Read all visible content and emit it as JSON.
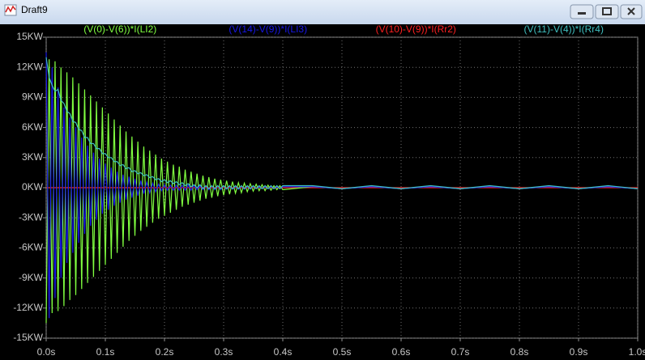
{
  "window": {
    "title": "Draft9"
  },
  "chart_data": {
    "type": "line",
    "x": [
      0,
      0.005,
      0.01,
      0.015,
      0.02,
      0.025,
      0.03,
      0.035,
      0.04,
      0.045,
      0.05,
      0.055,
      0.06,
      0.065,
      0.07,
      0.075,
      0.08,
      0.085,
      0.09,
      0.095,
      0.1,
      0.105,
      0.11,
      0.115,
      0.12,
      0.125,
      0.13,
      0.135,
      0.14,
      0.145,
      0.15,
      0.155,
      0.16,
      0.165,
      0.17,
      0.175,
      0.18,
      0.185,
      0.19,
      0.195,
      0.2,
      0.205,
      0.21,
      0.215,
      0.22,
      0.225,
      0.23,
      0.235,
      0.24,
      0.245,
      0.25,
      0.255,
      0.26,
      0.265,
      0.27,
      0.275,
      0.28,
      0.285,
      0.29,
      0.295,
      0.3,
      0.305,
      0.31,
      0.315,
      0.32,
      0.325,
      0.33,
      0.335,
      0.34,
      0.345,
      0.35,
      0.355,
      0.36,
      0.365,
      0.37,
      0.375,
      0.38,
      0.385,
      0.39,
      0.395,
      0.4,
      0.45,
      0.5,
      0.55,
      0.6,
      0.65,
      0.7,
      0.75,
      0.8,
      0.85,
      0.9,
      0.95,
      1.0
    ],
    "series": [
      {
        "name": "(V(0)-V(6))*I(LI2)",
        "color": "#80ff40",
        "values": [
          -13.5,
          12.8,
          -12.5,
          12.6,
          -12.3,
          12,
          -11.8,
          11.5,
          -11.2,
          11,
          -10.7,
          10.4,
          -10.1,
          9.8,
          -9.5,
          9.2,
          -8.9,
          8.6,
          -8.3,
          8,
          -7.7,
          7.4,
          -7.1,
          6.8,
          -6.5,
          6.2,
          -5.9,
          5.6,
          -5.3,
          5.1,
          -4.8,
          4.6,
          -4.3,
          4.1,
          -3.9,
          3.7,
          -3.5,
          3.3,
          -3.1,
          2.9,
          -2.8,
          2.6,
          -2.5,
          2.3,
          -2.2,
          2.1,
          -1.9,
          1.8,
          -1.7,
          1.6,
          -1.5,
          1.4,
          -1.3,
          1.2,
          -1.1,
          1.05,
          -1,
          0.9,
          -0.85,
          0.8,
          -0.75,
          0.7,
          -0.65,
          0.6,
          -0.55,
          0.5,
          -0.5,
          0.45,
          -0.4,
          0.4,
          -0.35,
          0.35,
          -0.3,
          0.3,
          -0.3,
          0.25,
          -0.25,
          0.2,
          -0.2,
          0.2,
          -0.2,
          0.1,
          -0.1,
          0.1,
          -0.1,
          0.1,
          -0.1,
          0.1,
          -0.1,
          0.1,
          -0.1,
          0.1,
          -0.1
        ]
      },
      {
        "name": "(V(14)-V(9))*I(LI3)",
        "color": "#1818e8",
        "values": [
          13.5,
          -13,
          12,
          -11,
          10,
          -9,
          8,
          -7.5,
          7,
          -6.5,
          6,
          -5.5,
          5,
          -4.6,
          4.2,
          -3.8,
          3.5,
          -3.2,
          2.9,
          -2.6,
          2.4,
          -2.2,
          2,
          -1.8,
          1.6,
          -1.5,
          1.3,
          -1.2,
          1.1,
          -1,
          0.9,
          -0.8,
          0.7,
          -0.6,
          0.55,
          -0.5,
          0.45,
          -0.4,
          0.35,
          -0.3,
          0.3,
          -0.25,
          0.25,
          -0.25,
          0.25,
          -0.25,
          0.25,
          -0.25,
          0.25,
          -0.25,
          0.25,
          -0.2,
          0.2,
          -0.2,
          0.2,
          -0.2,
          0.2,
          -0.2,
          0.2,
          -0.2,
          0.2,
          -0.15,
          0.15,
          -0.15,
          0.15,
          -0.15,
          0.15,
          -0.15,
          0.15,
          -0.15,
          0.15,
          -0.1,
          0.1,
          -0.1,
          0.1,
          -0.1,
          0.1,
          -0.1,
          0.1,
          -0.1,
          0.1,
          0.1,
          -0.1,
          0.1,
          -0.1,
          0.1,
          -0.1,
          0.1,
          -0.1,
          0.1,
          -0.1,
          0.1,
          -0.1
        ]
      },
      {
        "name": "(V(10)-V(9))*I(Rr2)",
        "color": "#ff2020",
        "values": [
          0,
          0,
          0,
          0,
          0,
          0,
          0,
          0,
          0,
          0,
          0,
          0,
          0,
          0,
          0,
          0,
          0,
          0,
          0,
          0,
          0,
          0,
          0,
          0,
          0,
          0,
          0,
          0,
          0,
          0,
          0,
          0,
          0,
          0,
          0,
          0,
          0,
          0,
          0,
          0,
          0,
          0,
          0,
          0,
          0,
          0,
          0,
          0,
          0,
          0,
          0,
          0,
          0,
          0,
          0,
          0,
          0,
          0,
          0,
          0,
          0,
          0,
          0,
          0,
          0,
          0,
          0,
          0,
          0,
          0,
          0,
          0,
          0,
          0,
          0,
          0,
          0,
          0,
          0,
          0,
          0,
          0,
          0,
          0,
          0,
          0,
          0,
          0,
          0,
          0,
          0,
          0,
          0
        ]
      },
      {
        "name": "(V(11)-V(4))*I(Rr4)",
        "color": "#40c0c0",
        "values": [
          13,
          11,
          10.2,
          9.6,
          9.8,
          8.7,
          8.4,
          7.6,
          7.4,
          6.6,
          6.5,
          5.8,
          5.7,
          5.0,
          5.0,
          4.4,
          4.4,
          3.9,
          3.9,
          3.4,
          3.4,
          3.0,
          3.0,
          2.6,
          2.6,
          2.2,
          2.3,
          1.9,
          2.0,
          1.6,
          1.7,
          1.4,
          1.5,
          1.2,
          1.3,
          1.0,
          1.1,
          0.8,
          0.9,
          0.6,
          0.8,
          0.5,
          0.7,
          0.4,
          0.6,
          0.3,
          0.5,
          0.2,
          0.4,
          0.1,
          0.3,
          0.0,
          0.3,
          -0.1,
          0.2,
          -0.1,
          0.2,
          -0.1,
          0.2,
          -0.1,
          0.2,
          -0.1,
          0.2,
          -0.1,
          0.2,
          -0.1,
          0.2,
          -0.1,
          0.2,
          -0.1,
          0.2,
          -0.1,
          0.2,
          -0.1,
          0.2,
          -0.1,
          0.2,
          -0.1,
          0.2,
          -0.1,
          0.2,
          0.2,
          -0.1,
          0.2,
          -0.1,
          0.2,
          -0.1,
          0.2,
          -0.1,
          0.2,
          -0.1,
          0.2,
          -0.1
        ]
      }
    ],
    "xlim": [
      0,
      1
    ],
    "ylim": [
      -15,
      15
    ],
    "xticks": [
      {
        "value": 0,
        "label": "0.0s"
      },
      {
        "value": 0.1,
        "label": "0.1s"
      },
      {
        "value": 0.2,
        "label": "0.2s"
      },
      {
        "value": 0.3,
        "label": "0.3s"
      },
      {
        "value": 0.4,
        "label": "0.4s"
      },
      {
        "value": 0.5,
        "label": "0.5s"
      },
      {
        "value": 0.6,
        "label": "0.6s"
      },
      {
        "value": 0.7,
        "label": "0.7s"
      },
      {
        "value": 0.8,
        "label": "0.8s"
      },
      {
        "value": 0.9,
        "label": "0.9s"
      },
      {
        "value": 1,
        "label": "1.0s"
      }
    ],
    "yticks": [
      {
        "value": -15,
        "label": "-15KW"
      },
      {
        "value": -12,
        "label": "-12KW"
      },
      {
        "value": -9,
        "label": "-9KW"
      },
      {
        "value": -6,
        "label": "-6KW"
      },
      {
        "value": -3,
        "label": "-3KW"
      },
      {
        "value": 0,
        "label": "0KW"
      },
      {
        "value": 3,
        "label": "3KW"
      },
      {
        "value": 6,
        "label": "6KW"
      },
      {
        "value": 9,
        "label": "9KW"
      },
      {
        "value": 12,
        "label": "12KW"
      },
      {
        "value": 15,
        "label": "15KW"
      }
    ],
    "grid": true
  }
}
